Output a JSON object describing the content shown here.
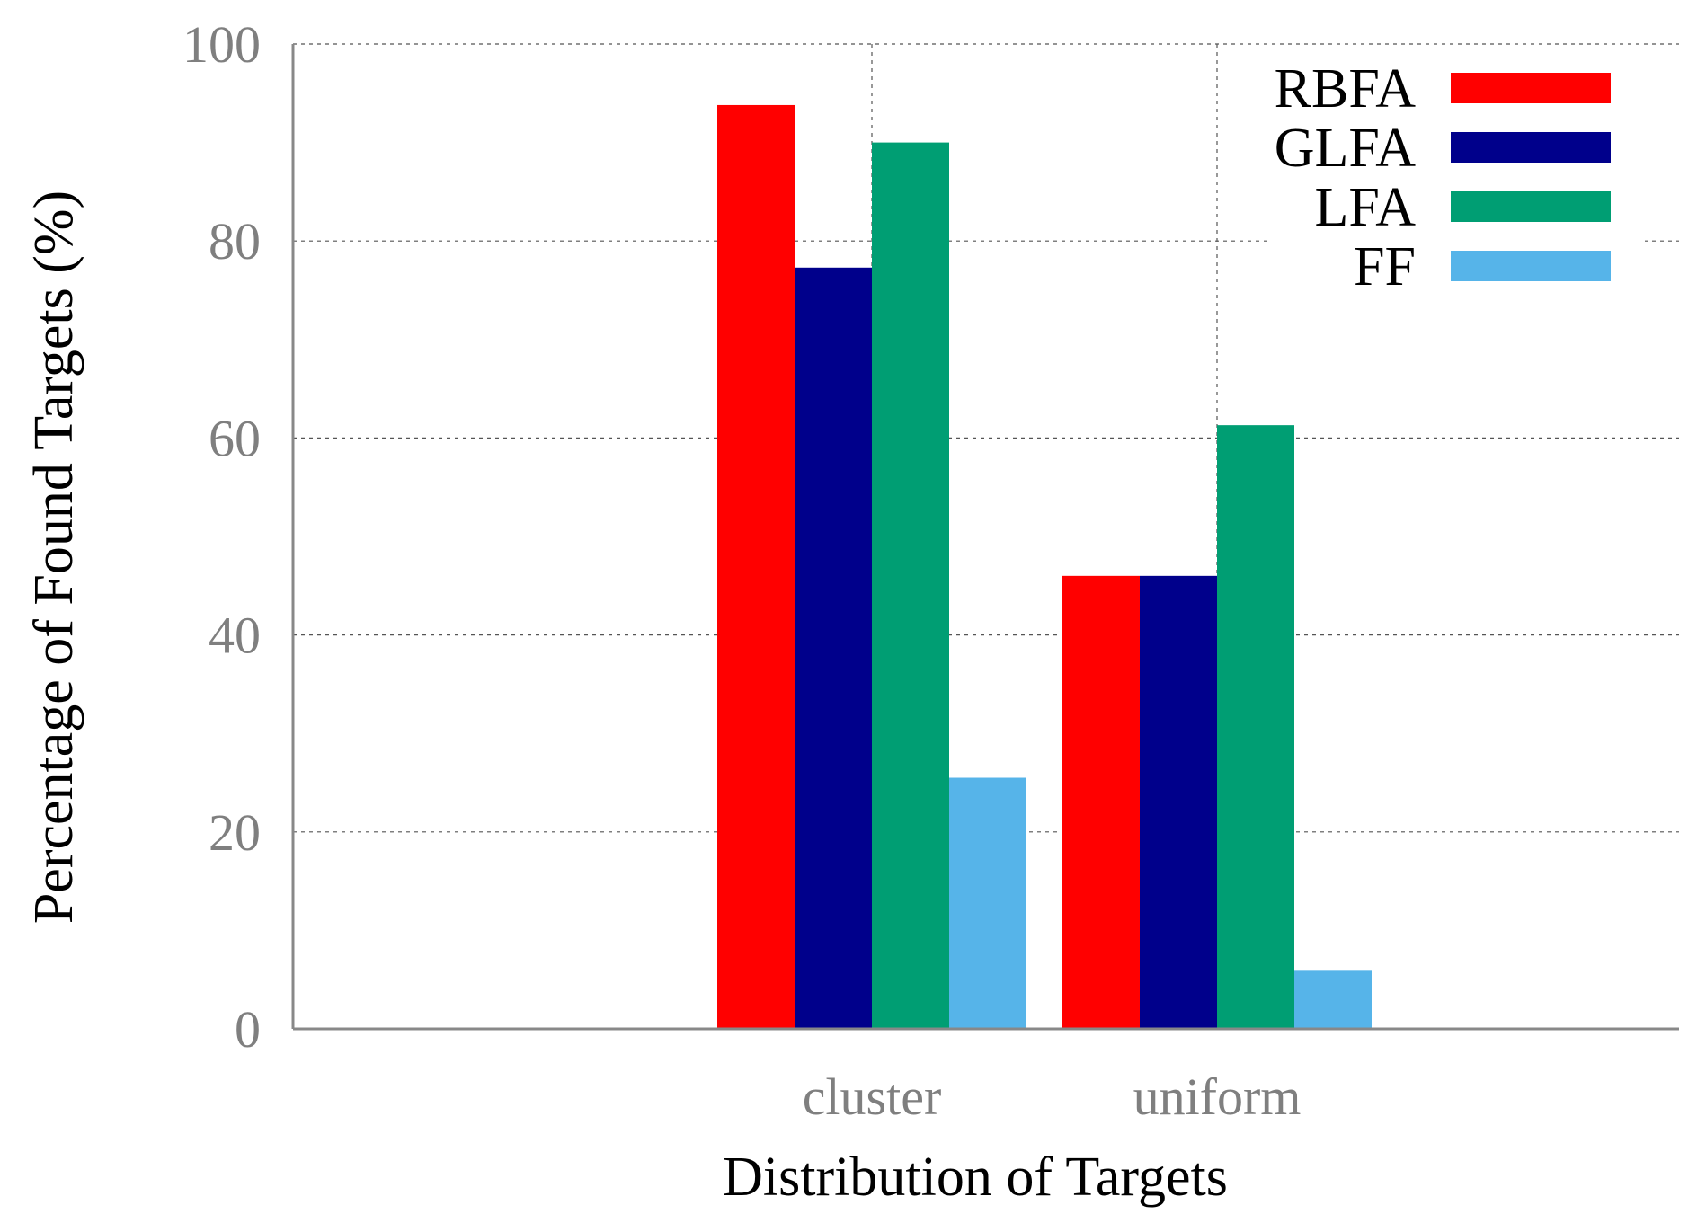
{
  "chart_data": {
    "type": "bar",
    "title": "",
    "xlabel": "Distribution of Targets",
    "ylabel": "Percentage of Found Targets (%)",
    "categories": [
      "cluster",
      "uniform"
    ],
    "ylim": [
      0,
      100
    ],
    "yticks": [
      0,
      20,
      40,
      60,
      80,
      100
    ],
    "grid": true,
    "legend_position": "top-right",
    "series": [
      {
        "name": "RBFA",
        "color": "#ff0000",
        "values": [
          93.8,
          46.0
        ]
      },
      {
        "name": "GLFA",
        "color": "#00008b",
        "values": [
          77.3,
          46.0
        ]
      },
      {
        "name": "LFA",
        "color": "#009e73",
        "values": [
          90.0,
          61.3
        ]
      },
      {
        "name": "FF",
        "color": "#56b4e9",
        "values": [
          25.5,
          5.9
        ]
      }
    ]
  }
}
